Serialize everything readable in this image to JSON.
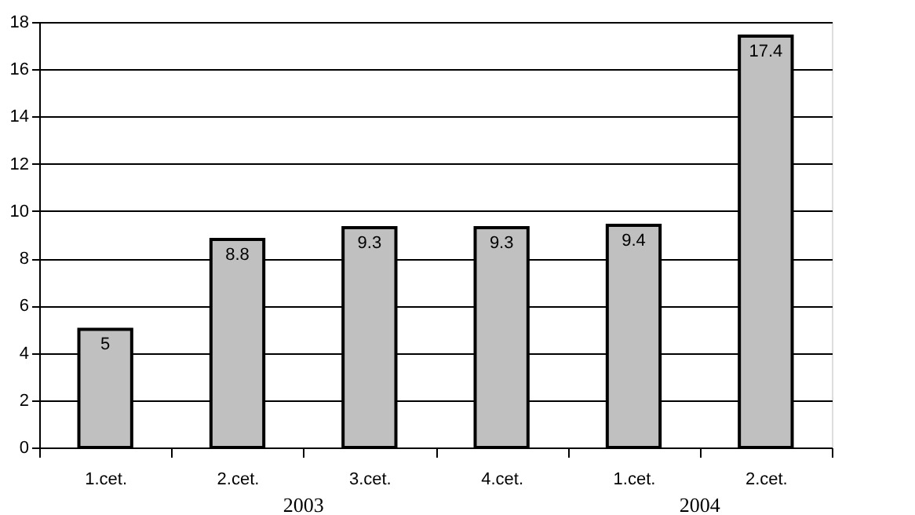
{
  "chart_data": {
    "type": "bar",
    "categories": [
      "1.cet.",
      "2.cet.",
      "3.cet.",
      "4.cet.",
      "1.cet.",
      "2.cet."
    ],
    "values": [
      5,
      8.8,
      9.3,
      9.3,
      9.4,
      17.4
    ],
    "color": "#c0c0c0",
    "ylim": [
      0,
      18
    ],
    "yticks": [
      0,
      2,
      4,
      6,
      8,
      10,
      12,
      14,
      16,
      18
    ],
    "grid": "y",
    "data_labels": true,
    "annotations": [
      "2003",
      "2004"
    ]
  }
}
